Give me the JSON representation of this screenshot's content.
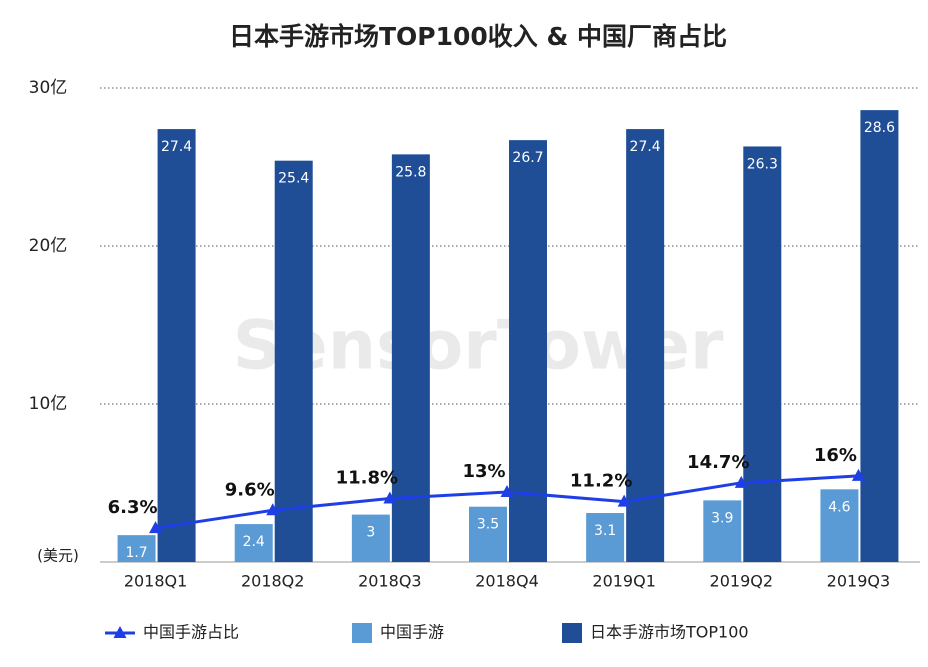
{
  "chart_data": {
    "type": "bar-line",
    "title": "日本手游市场TOP100收入 & 中国厂商占比",
    "y_unit": "(美元)",
    "watermark": "SensorTower",
    "categories": [
      "2018Q1",
      "2018Q2",
      "2018Q3",
      "2018Q4",
      "2019Q1",
      "2019Q2",
      "2019Q3"
    ],
    "series": [
      {
        "name": "中国手游占比",
        "type": "line",
        "axis": "y2",
        "color": "#1f3fe6",
        "values": [
          6.3,
          9.6,
          11.8,
          13,
          11.2,
          14.7,
          16
        ],
        "value_labels": [
          "6.3%",
          "9.6%",
          "11.8%",
          "13%",
          "11.2%",
          "14.7%",
          "16%"
        ]
      },
      {
        "name": "中国手游",
        "type": "bar",
        "color": "#5b9bd5",
        "values": [
          1.7,
          2.4,
          3,
          3.5,
          3.1,
          3.9,
          4.6
        ]
      },
      {
        "name": "日本手游市场TOP100",
        "type": "bar",
        "color": "#1f4e96",
        "values": [
          27.4,
          25.4,
          25.8,
          26.7,
          27.4,
          26.3,
          28.6
        ]
      }
    ],
    "ylim": [
      0,
      30
    ],
    "yticks": [
      {
        "value": 10,
        "label": "10亿"
      },
      {
        "value": 20,
        "label": "20亿"
      },
      {
        "value": 30,
        "label": "30亿"
      }
    ],
    "y2lim": [
      0,
      88
    ],
    "grid": true,
    "legend": "bottom"
  }
}
